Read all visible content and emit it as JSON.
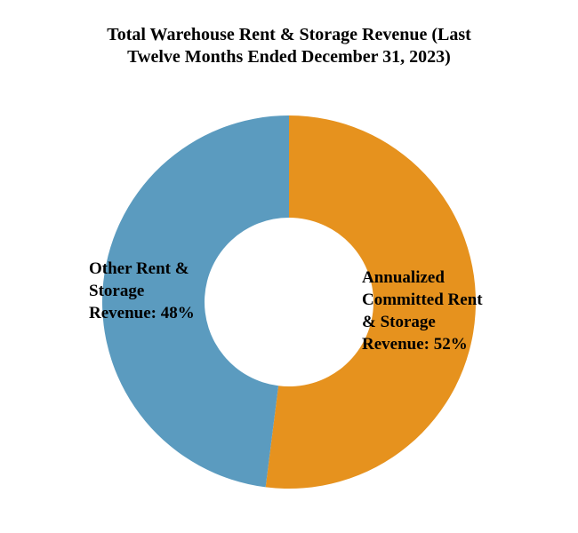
{
  "chart_data": {
    "type": "donut",
    "title": "Total Warehouse Rent & Storage Revenue (Last Twelve Months Ended December 31, 2023)",
    "values": [
      52,
      48
    ],
    "value_labels": [
      "Annualized Committed Rent & Storage Revenue: 52%",
      "Other Rent & Storage Revenue: 48%"
    ],
    "colors": [
      "#e6921e",
      "#5b9bbf"
    ]
  }
}
